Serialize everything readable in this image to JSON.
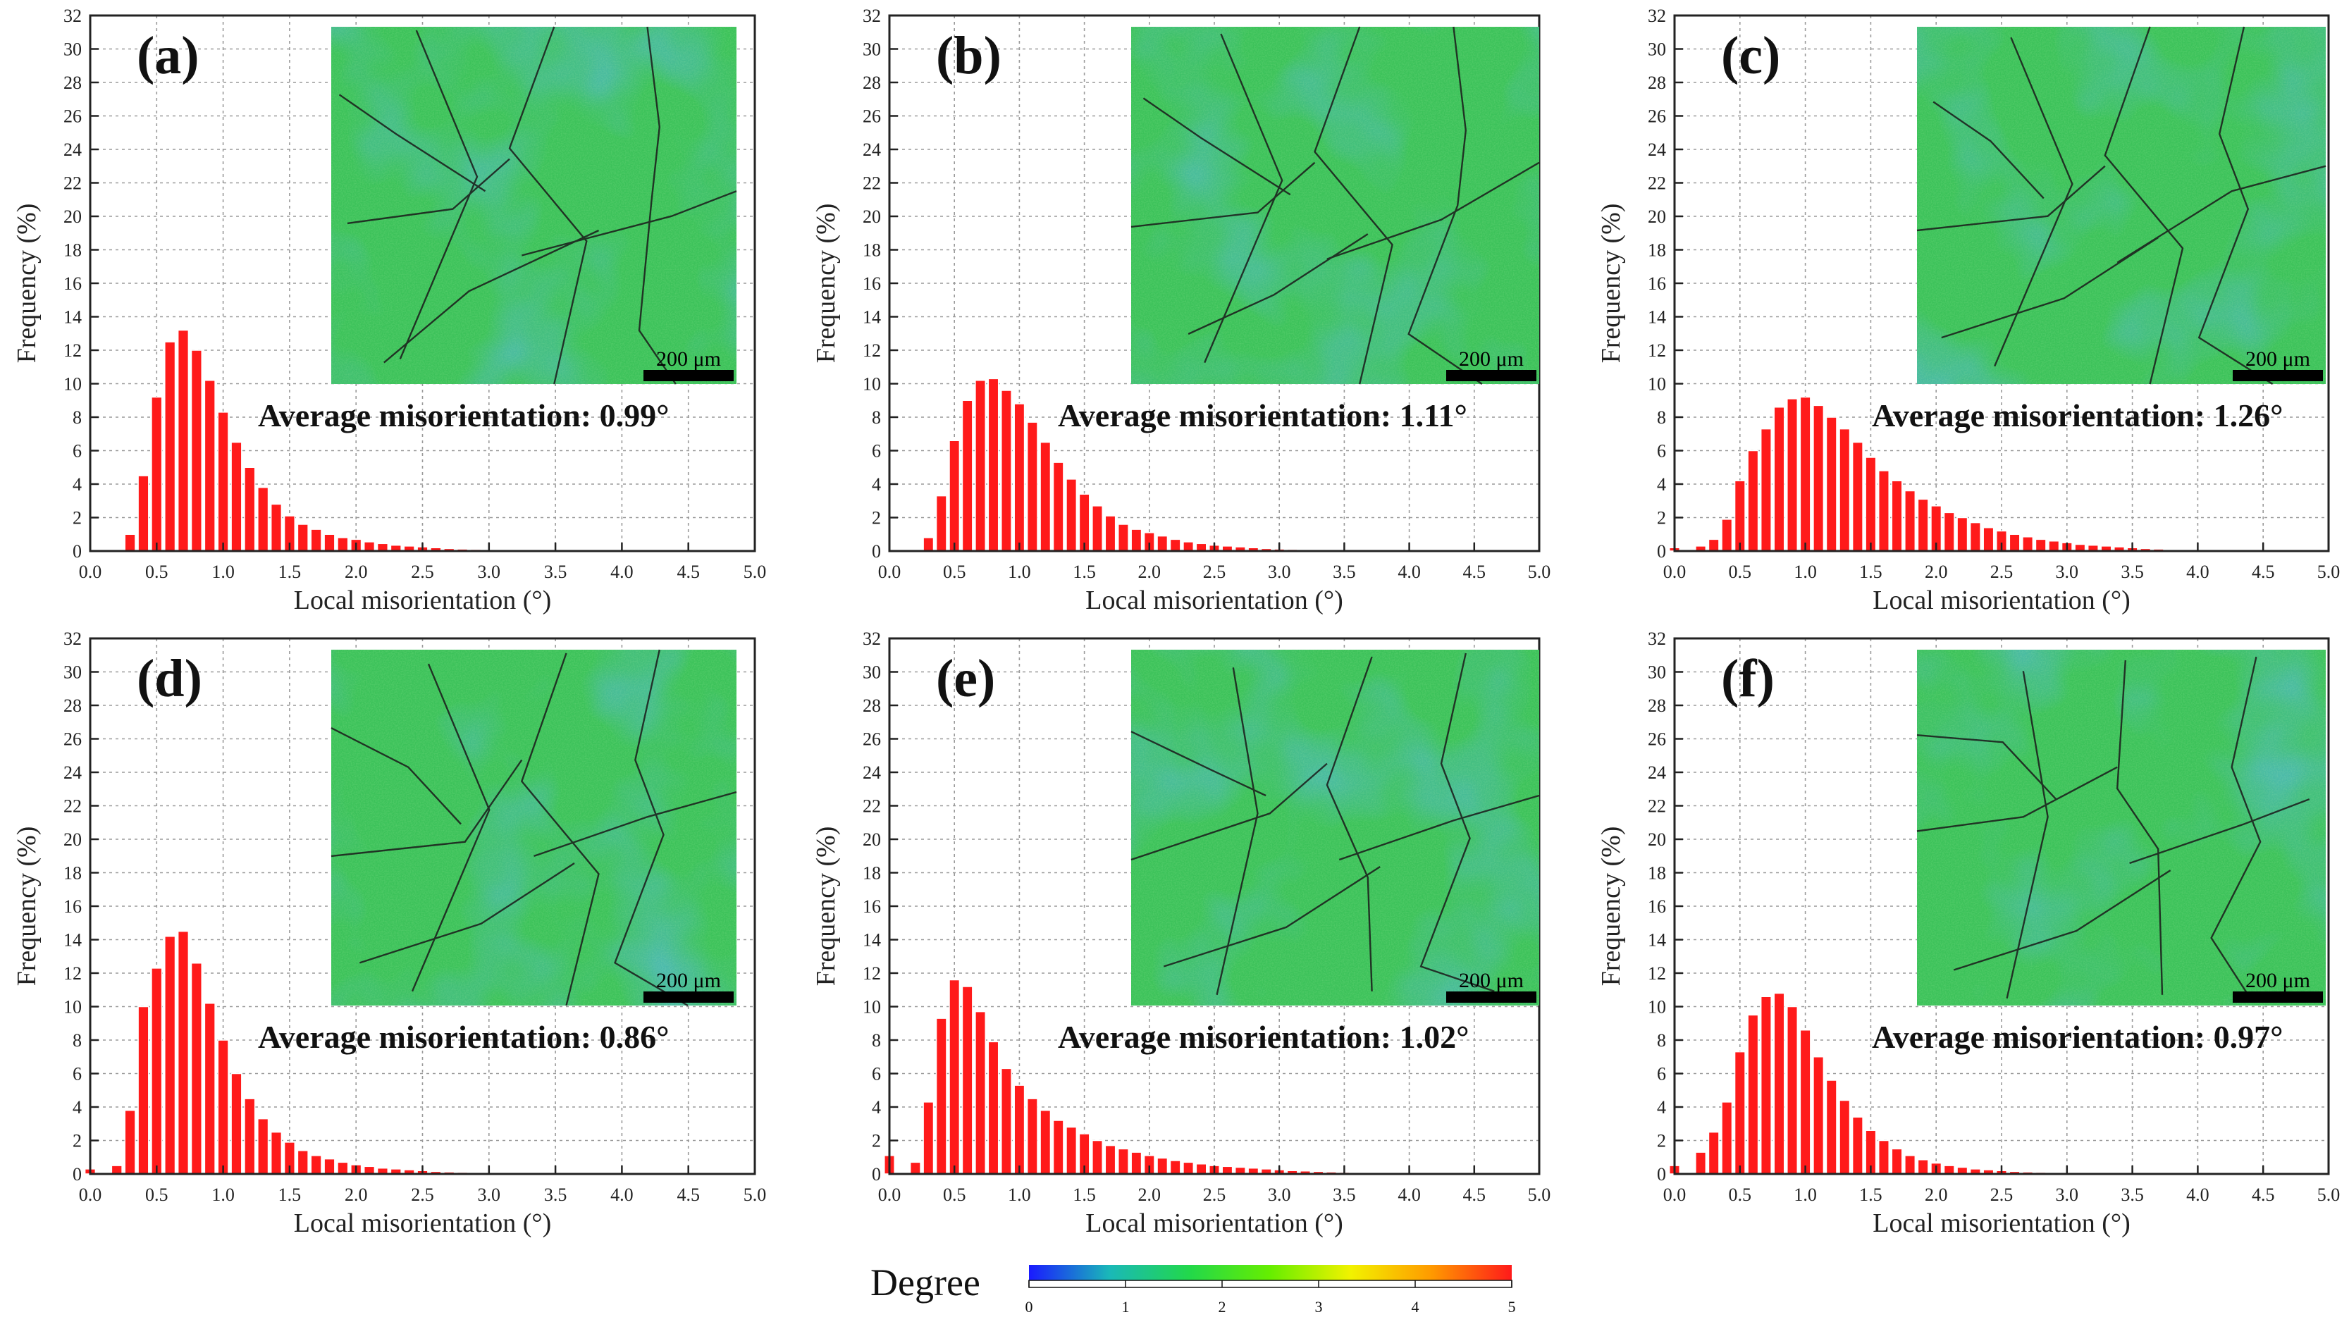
{
  "figure": {
    "colorbar": {
      "label": "Degree",
      "ticks": [
        "0",
        "1",
        "2",
        "3",
        "4",
        "5"
      ],
      "colors": [
        "#1a1aff",
        "#1ab8b8",
        "#22d84a",
        "#66ee00",
        "#f2f200",
        "#ff9a00",
        "#ff1a1a"
      ]
    },
    "accent_color": "#ff1a1a"
  },
  "chart_data": [
    {
      "type": "bar",
      "panel_label": "(a)",
      "xlabel": "Local misorientation (°)",
      "ylabel": "Frequency (%)",
      "xlim": [
        0,
        5
      ],
      "ylim": [
        0,
        32
      ],
      "xticks": [
        "0.0",
        "0.5",
        "1.0",
        "1.5",
        "2.0",
        "2.5",
        "3.0",
        "3.5",
        "4.0",
        "4.5",
        "5.0"
      ],
      "yticks": [
        "0",
        "2",
        "4",
        "6",
        "8",
        "10",
        "12",
        "14",
        "16",
        "18",
        "20",
        "22",
        "24",
        "26",
        "28",
        "30",
        "32"
      ],
      "annotation": "Average misorientation: 0.99°",
      "scalebar_label": "200 μm",
      "bin_width": 0.1,
      "x_start": 0.0,
      "values": [
        0,
        0,
        0,
        1.0,
        4.5,
        9.2,
        12.5,
        13.2,
        12.0,
        10.2,
        8.3,
        6.5,
        5.0,
        3.8,
        2.8,
        2.1,
        1.6,
        1.3,
        1.0,
        0.8,
        0.7,
        0.55,
        0.45,
        0.35,
        0.3,
        0.25,
        0.2,
        0.15,
        0.12,
        0.1,
        0.08
      ]
    },
    {
      "type": "bar",
      "panel_label": "(b)",
      "xlabel": "Local misorientation (°)",
      "ylabel": "Frequency (%)",
      "xlim": [
        0,
        5
      ],
      "ylim": [
        0,
        32
      ],
      "xticks": [
        "0.0",
        "0.5",
        "1.0",
        "1.5",
        "2.0",
        "2.5",
        "3.0",
        "3.5",
        "4.0",
        "4.5",
        "5.0"
      ],
      "yticks": [
        "0",
        "2",
        "4",
        "6",
        "8",
        "10",
        "12",
        "14",
        "16",
        "18",
        "20",
        "22",
        "24",
        "26",
        "28",
        "30",
        "32"
      ],
      "annotation": "Average misorientation: 1.11°",
      "scalebar_label": "200 μm",
      "bin_width": 0.1,
      "x_start": 0.0,
      "values": [
        0,
        0,
        0,
        0.8,
        3.3,
        6.6,
        9.0,
        10.2,
        10.3,
        9.6,
        8.8,
        7.7,
        6.5,
        5.3,
        4.3,
        3.4,
        2.7,
        2.1,
        1.6,
        1.3,
        1.1,
        0.9,
        0.7,
        0.55,
        0.45,
        0.35,
        0.3,
        0.25,
        0.2,
        0.15,
        0.12,
        0.1,
        0.08
      ]
    },
    {
      "type": "bar",
      "panel_label": "(c)",
      "xlabel": "Local misorientation (°)",
      "ylabel": "Frequency (%)",
      "xlim": [
        0,
        5
      ],
      "ylim": [
        0,
        32
      ],
      "xticks": [
        "0.0",
        "0.5",
        "1.0",
        "1.5",
        "2.0",
        "2.5",
        "3.0",
        "3.5",
        "4.0",
        "4.5",
        "5.0"
      ],
      "yticks": [
        "0",
        "2",
        "4",
        "6",
        "8",
        "10",
        "12",
        "14",
        "16",
        "18",
        "20",
        "22",
        "24",
        "26",
        "28",
        "30",
        "32"
      ],
      "annotation": "Average misorientation: 1.26°",
      "scalebar_label": "200 μm",
      "bin_width": 0.1,
      "x_start": 0.0,
      "values": [
        0.2,
        0,
        0.3,
        0.7,
        1.9,
        4.2,
        6.0,
        7.3,
        8.6,
        9.1,
        9.2,
        8.7,
        8.0,
        7.3,
        6.5,
        5.6,
        4.8,
        4.2,
        3.6,
        3.1,
        2.7,
        2.3,
        2.0,
        1.7,
        1.4,
        1.2,
        1.0,
        0.85,
        0.7,
        0.6,
        0.5,
        0.4,
        0.35,
        0.3,
        0.25,
        0.2,
        0.15,
        0.12
      ]
    },
    {
      "type": "bar",
      "panel_label": "(d)",
      "xlabel": "Local misorientation (°)",
      "ylabel": "Frequency (%)",
      "xlim": [
        0,
        5
      ],
      "ylim": [
        0,
        32
      ],
      "xticks": [
        "0.0",
        "0.5",
        "1.0",
        "1.5",
        "2.0",
        "2.5",
        "3.0",
        "3.5",
        "4.0",
        "4.5",
        "5.0"
      ],
      "yticks": [
        "0",
        "2",
        "4",
        "6",
        "8",
        "10",
        "12",
        "14",
        "16",
        "18",
        "20",
        "22",
        "24",
        "26",
        "28",
        "30",
        "32"
      ],
      "annotation": "Average misorientation: 0.86°",
      "scalebar_label": "200 μm",
      "bin_width": 0.1,
      "x_start": 0.0,
      "values": [
        0.3,
        0,
        0.5,
        3.8,
        10.0,
        12.3,
        14.2,
        14.5,
        12.6,
        10.2,
        8.0,
        6.0,
        4.5,
        3.3,
        2.5,
        1.9,
        1.4,
        1.1,
        0.9,
        0.7,
        0.55,
        0.45,
        0.35,
        0.3,
        0.25,
        0.2,
        0.15,
        0.12,
        0.1,
        0.08
      ]
    },
    {
      "type": "bar",
      "panel_label": "(e)",
      "xlabel": "Local misorientation (°)",
      "ylabel": "Frequency (%)",
      "xlim": [
        0,
        5
      ],
      "ylim": [
        0,
        32
      ],
      "xticks": [
        "0.0",
        "0.5",
        "1.0",
        "1.5",
        "2.0",
        "2.5",
        "3.0",
        "3.5",
        "4.0",
        "4.5",
        "5.0"
      ],
      "yticks": [
        "0",
        "2",
        "4",
        "6",
        "8",
        "10",
        "12",
        "14",
        "16",
        "18",
        "20",
        "22",
        "24",
        "26",
        "28",
        "30",
        "32"
      ],
      "annotation": "Average misorientation: 1.02°",
      "scalebar_label": "200 μm",
      "bin_width": 0.1,
      "x_start": 0.0,
      "values": [
        1.1,
        0,
        0.7,
        4.3,
        9.3,
        11.6,
        11.2,
        9.7,
        7.9,
        6.3,
        5.3,
        4.5,
        3.8,
        3.2,
        2.8,
        2.4,
        2.0,
        1.7,
        1.5,
        1.3,
        1.1,
        0.95,
        0.8,
        0.7,
        0.6,
        0.5,
        0.45,
        0.4,
        0.35,
        0.3,
        0.25,
        0.2,
        0.18,
        0.15,
        0.12,
        0.1,
        0.08,
        0.06,
        0.05,
        0.04
      ]
    },
    {
      "type": "bar",
      "panel_label": "(f)",
      "xlabel": "Local misorientation (°)",
      "ylabel": "Frequency (%)",
      "xlim": [
        0,
        5
      ],
      "ylim": [
        0,
        32
      ],
      "xticks": [
        "0.0",
        "0.5",
        "1.0",
        "1.5",
        "2.0",
        "2.5",
        "3.0",
        "3.5",
        "4.0",
        "4.5",
        "5.0"
      ],
      "yticks": [
        "0",
        "2",
        "4",
        "6",
        "8",
        "10",
        "12",
        "14",
        "16",
        "18",
        "20",
        "22",
        "24",
        "26",
        "28",
        "30",
        "32"
      ],
      "annotation": "Average misorientation: 0.97°",
      "scalebar_label": "200 μm",
      "bin_width": 0.1,
      "x_start": 0.0,
      "values": [
        0.5,
        0,
        1.3,
        2.5,
        4.3,
        7.3,
        9.5,
        10.6,
        10.8,
        10.0,
        8.6,
        7.0,
        5.6,
        4.4,
        3.4,
        2.6,
        2.0,
        1.5,
        1.1,
        0.85,
        0.65,
        0.5,
        0.4,
        0.3,
        0.25,
        0.2,
        0.15,
        0.12,
        0.1,
        0.08,
        0.06,
        0.05
      ]
    }
  ]
}
